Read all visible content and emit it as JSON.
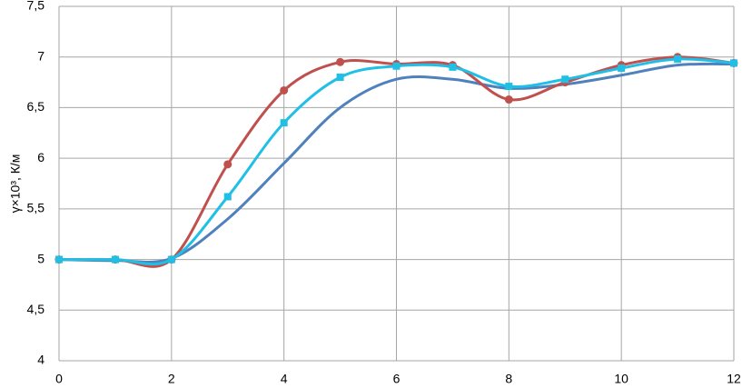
{
  "chart_data": {
    "type": "line",
    "y_label": "γ×10³, К/м",
    "x": [
      0,
      1,
      2,
      3,
      4,
      5,
      6,
      7,
      8,
      9,
      10,
      11,
      12
    ],
    "series": [
      {
        "color": "#4f81bd",
        "marker": "none",
        "values": [
          5,
          4.99,
          5.01,
          5.4,
          5.95,
          6.5,
          6.78,
          6.78,
          6.69,
          6.73,
          6.82,
          6.92,
          6.93
        ]
      },
      {
        "color": "#c0504d",
        "marker": "circle",
        "values": [
          5,
          5,
          5,
          5.94,
          6.67,
          6.95,
          6.93,
          6.92,
          6.58,
          6.75,
          6.92,
          7.0,
          6.94
        ]
      },
      {
        "color": "#1fbfe6",
        "marker": "square",
        "values": [
          5,
          5,
          5,
          5.62,
          6.35,
          6.8,
          6.91,
          6.9,
          6.71,
          6.78,
          6.89,
          6.98,
          6.94
        ]
      }
    ],
    "xlim": [
      0,
      12
    ],
    "xticks": [
      0,
      2,
      4,
      6,
      8,
      10,
      12
    ],
    "ylim": [
      4,
      7.5
    ],
    "yticks": [
      4,
      {
        "value": 4.5,
        "label": "4,5"
      },
      5,
      {
        "value": 5.5,
        "label": "5,5"
      },
      6,
      {
        "value": 6.5,
        "label": "6,5"
      },
      7,
      {
        "value": 7.5,
        "label": "7,5"
      }
    ],
    "grid": true
  }
}
